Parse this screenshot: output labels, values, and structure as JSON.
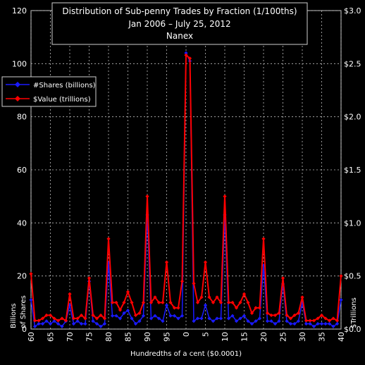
{
  "chart_data": {
    "type": "line",
    "title_lines": [
      "Distribution of Sub-penny Trades by Fraction (1/100ths)",
      "Jan 2006 – July 25, 2012",
      "Nanex"
    ],
    "xlabel": "Hundredths of a cent ($0.0001)",
    "ylabel_left": [
      "Billions",
      "of Shares"
    ],
    "ylabel_right": "$Trillions",
    "x_tick_labels": [
      "60",
      "65",
      "70",
      "75",
      "80",
      "85",
      "90",
      "95",
      "0",
      "5",
      "10",
      "15",
      "20",
      "25",
      "30",
      "35",
      "40"
    ],
    "y_left_ticks": [
      "0",
      "20",
      "40",
      "60",
      "80",
      "100",
      "120"
    ],
    "y_left_lim": [
      0,
      120
    ],
    "y_right_ticks": [
      "$0.0",
      "$0.5",
      "$1.0",
      "$1.5",
      "$2.0",
      "$2.5",
      "$3.0"
    ],
    "y_right_lim": [
      0,
      3.0
    ],
    "grid": true,
    "legend_placement": "upper-left",
    "x": [
      60,
      61,
      62,
      63,
      64,
      65,
      66,
      67,
      68,
      69,
      70,
      71,
      72,
      73,
      74,
      75,
      76,
      77,
      78,
      79,
      80,
      81,
      82,
      83,
      84,
      85,
      86,
      87,
      88,
      89,
      90,
      91,
      92,
      93,
      94,
      95,
      96,
      97,
      98,
      99,
      100,
      101,
      102,
      103,
      104,
      105,
      106,
      107,
      108,
      109,
      110,
      111,
      112,
      113,
      114,
      115,
      116,
      117,
      118,
      119,
      120,
      121,
      122,
      123,
      124,
      125,
      126,
      127,
      128,
      129,
      130,
      131,
      132,
      133,
      134,
      135,
      136,
      137,
      138,
      139,
      140
    ],
    "series": [
      {
        "name": "#Shares (billions)",
        "axis": "left",
        "color": "#1a1aff",
        "marker": "diamond",
        "values": [
          11,
          1,
          2,
          2,
          3,
          2,
          3,
          2,
          1,
          3,
          9,
          2,
          3,
          2,
          2,
          18,
          3,
          2,
          1,
          2,
          25,
          5,
          5,
          4,
          6,
          7,
          4,
          2,
          3,
          5,
          43,
          4,
          5,
          4,
          3,
          9,
          5,
          5,
          4,
          5,
          104,
          101,
          3,
          4,
          4,
          9,
          4,
          3,
          4,
          4,
          43,
          4,
          5,
          3,
          4,
          5,
          3,
          2,
          3,
          4,
          24,
          3,
          3,
          2,
          3,
          17,
          3,
          2,
          2,
          3,
          10,
          2,
          2,
          1,
          2,
          2,
          2,
          2,
          1,
          2,
          11
        ]
      },
      {
        "name": "$Value (trillions)",
        "axis": "right",
        "color": "#ff0000",
        "marker": "diamond",
        "values": [
          0.52,
          0.08,
          0.08,
          0.1,
          0.13,
          0.13,
          0.1,
          0.08,
          0.1,
          0.08,
          0.33,
          0.1,
          0.1,
          0.13,
          0.1,
          0.48,
          0.13,
          0.1,
          0.13,
          0.1,
          0.85,
          0.25,
          0.25,
          0.18,
          0.25,
          0.35,
          0.25,
          0.13,
          0.15,
          0.25,
          1.25,
          0.25,
          0.3,
          0.25,
          0.25,
          0.63,
          0.25,
          0.2,
          0.2,
          0.45,
          2.58,
          2.55,
          0.43,
          0.25,
          0.3,
          0.63,
          0.3,
          0.25,
          0.3,
          0.25,
          1.25,
          0.25,
          0.25,
          0.2,
          0.25,
          0.33,
          0.25,
          0.15,
          0.2,
          0.2,
          0.85,
          0.15,
          0.13,
          0.13,
          0.15,
          0.48,
          0.13,
          0.1,
          0.13,
          0.15,
          0.3,
          0.08,
          0.08,
          0.08,
          0.1,
          0.13,
          0.1,
          0.08,
          0.1,
          0.08,
          0.5
        ]
      }
    ]
  }
}
